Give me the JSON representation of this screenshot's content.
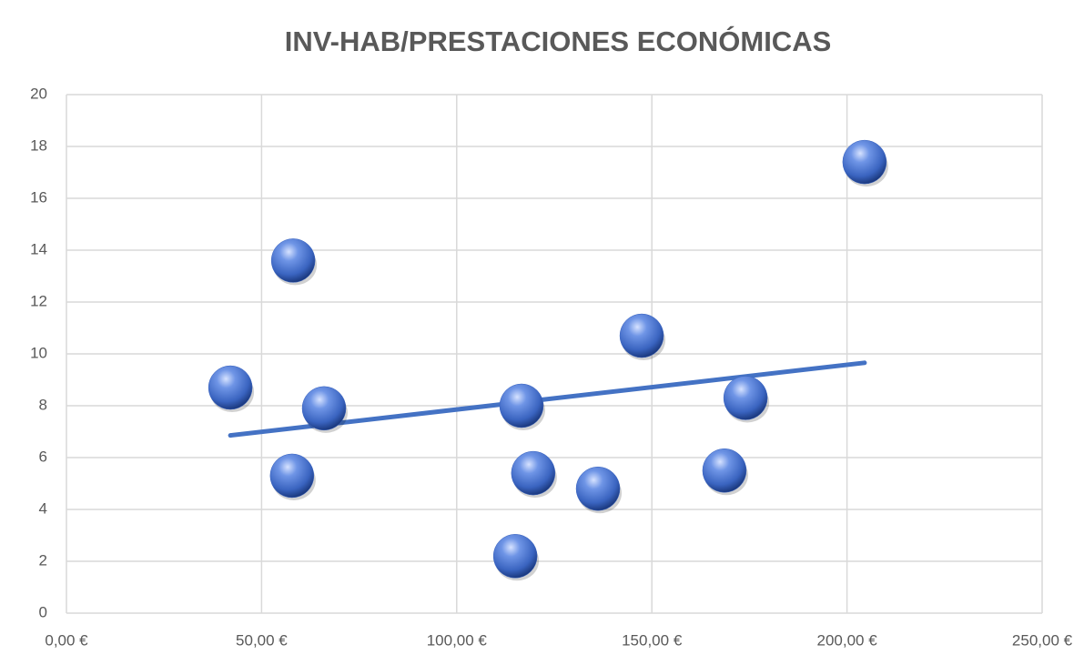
{
  "chart_data": {
    "type": "scatter",
    "title": "INV-HAB/PRESTACIONES ECONÓMICAS",
    "series": [
      {
        "color": "#3a64c0",
        "x": [
          42.0,
          58.1,
          57.8,
          66.0,
          116.6,
          119.6,
          115.0,
          136.2,
          147.4,
          168.6,
          174.0,
          204.5
        ],
        "values": [
          8.7,
          13.6,
          5.3,
          7.9,
          8.0,
          5.4,
          2.2,
          4.8,
          10.7,
          5.5,
          8.3,
          17.4
        ]
      }
    ],
    "trendline": {
      "type": "linear",
      "color": "#4472c4"
    },
    "xlim": [
      0,
      250
    ],
    "xticks": [
      {
        "value": 0,
        "label": "0,00 €"
      },
      {
        "value": 50,
        "label": "50,00 €"
      },
      {
        "value": 100,
        "label": "100,00 €"
      },
      {
        "value": 150,
        "label": "150,00 €"
      },
      {
        "value": 200,
        "label": "200,00 €"
      },
      {
        "value": 250,
        "label": "250,00 €"
      }
    ],
    "ylim": [
      0,
      20
    ],
    "yticks": [
      0,
      2,
      4,
      6,
      8,
      10,
      12,
      14,
      16,
      18,
      20
    ],
    "grid": true
  }
}
